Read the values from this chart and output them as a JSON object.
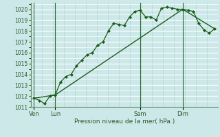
{
  "bg_color": "#cce8e8",
  "grid_color_h": "#ffffff",
  "grid_color_v": "#b0d4d4",
  "line_color": "#1a5c1a",
  "vline_color": "#2d6b2d",
  "title": "Pression niveau de la mer( hPa )",
  "ylim": [
    1011,
    1020.6
  ],
  "yticks": [
    1011,
    1012,
    1013,
    1014,
    1015,
    1016,
    1017,
    1018,
    1019,
    1020
  ],
  "xtick_labels": [
    "Ven",
    "Lun",
    "Sam",
    "Dim"
  ],
  "xtick_positions": [
    0,
    2,
    10,
    14
  ],
  "xlim": [
    -0.3,
    17.3
  ],
  "series1_x": [
    0,
    0.5,
    1.0,
    1.5,
    2.0,
    2.5,
    3.0,
    3.5,
    4.0,
    4.5,
    5.0,
    5.5,
    6.0,
    6.5,
    7.0,
    7.5,
    8.0,
    8.5,
    9.0,
    9.5,
    10.0,
    10.5,
    11.0,
    11.5,
    12.0,
    12.5,
    13.0,
    13.5,
    14.0,
    14.5,
    15.0,
    15.5,
    16.0,
    16.5,
    17.0
  ],
  "series1_y": [
    1011.8,
    1011.6,
    1011.3,
    1012.0,
    1012.1,
    1013.3,
    1013.8,
    1014.0,
    1014.8,
    1015.3,
    1015.8,
    1016.0,
    1016.7,
    1017.0,
    1018.0,
    1018.7,
    1018.6,
    1018.5,
    1019.3,
    1019.8,
    1019.9,
    1019.3,
    1019.3,
    1019.0,
    1020.1,
    1020.2,
    1020.1,
    1020.0,
    1020.0,
    1019.9,
    1019.8,
    1018.7,
    1018.1,
    1017.8,
    1018.2
  ],
  "series2_x": [
    0,
    2,
    14,
    17
  ],
  "series2_y": [
    1011.8,
    1012.1,
    1020.0,
    1018.2
  ],
  "vline_positions": [
    0,
    2,
    10,
    14
  ]
}
